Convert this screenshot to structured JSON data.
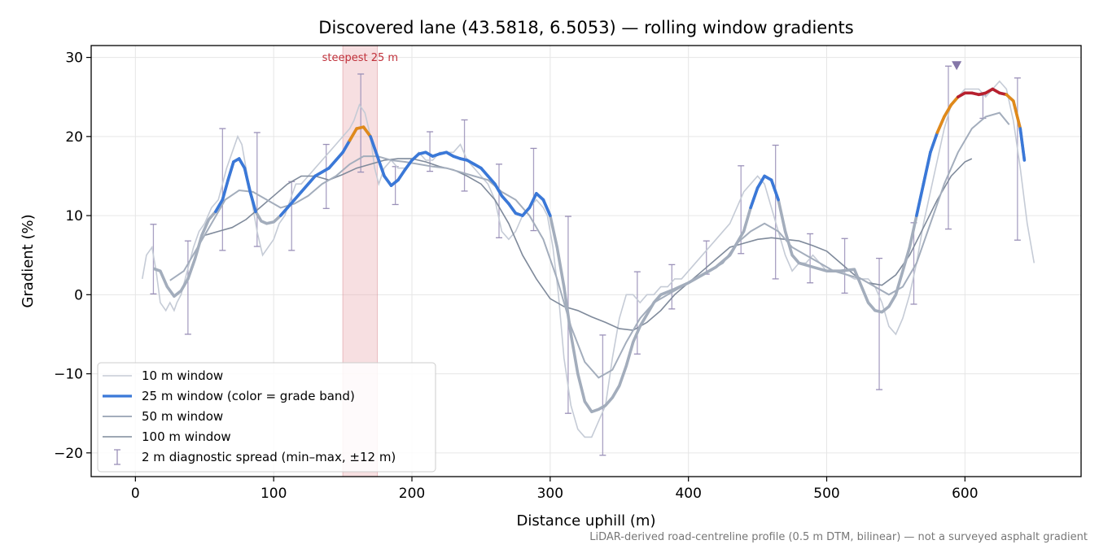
{
  "chart_data": {
    "type": "line",
    "title": "Discovered lane (43.5818, 6.5053) — rolling window gradients",
    "xlabel": "Distance uphill (m)",
    "ylabel": "Gradient (%)",
    "xlim": [
      -32,
      684
    ],
    "ylim": [
      -23,
      31.5
    ],
    "x_ticks": [
      0,
      100,
      200,
      300,
      400,
      500,
      600
    ],
    "y_ticks": [
      -20,
      -10,
      0,
      10,
      20,
      30
    ],
    "grid": true,
    "legend_position": "lower-left",
    "footnote": "LiDAR-derived road-centreline profile (0.5 m DTM, bilinear) — not a surveyed asphalt gradient",
    "highlight_band": {
      "x0": 150,
      "x1": 175,
      "label": "steepest 25 m",
      "color": "#e8a3aa"
    },
    "peak_marker": {
      "x": 594,
      "y": 29,
      "color": "#8476a8"
    },
    "grade_band_colors": {
      "low": "#3a78d8",
      "mid": "#e0891a",
      "high": "#b8202e"
    },
    "series": [
      {
        "name": "10 m window",
        "color": "#c5cbd6",
        "x": [
          5,
          8,
          12,
          15,
          18,
          22,
          25,
          28,
          30,
          33,
          36,
          39,
          42,
          46,
          50,
          55,
          60,
          63,
          66,
          70,
          74,
          77,
          80,
          84,
          88,
          92,
          96,
          100,
          104,
          108,
          112,
          116,
          120,
          125,
          130,
          135,
          140,
          145,
          150,
          155,
          158,
          162,
          166,
          170,
          173,
          176,
          180,
          185,
          190,
          195,
          200,
          205,
          210,
          215,
          220,
          225,
          230,
          235,
          240,
          245,
          250,
          255,
          260,
          265,
          270,
          275,
          280,
          285,
          290,
          295,
          298,
          302,
          306,
          310,
          315,
          320,
          325,
          330,
          335,
          340,
          345,
          350,
          355,
          360,
          365,
          370,
          375,
          380,
          385,
          390,
          395,
          400,
          410,
          420,
          430,
          440,
          445,
          450,
          455,
          460,
          465,
          470,
          475,
          480,
          485,
          490,
          495,
          500,
          510,
          520,
          530,
          535,
          540,
          545,
          550,
          555,
          560,
          565,
          570,
          575,
          580,
          585,
          590,
          595,
          600,
          605,
          610,
          615,
          620,
          625,
          630,
          635,
          640,
          645,
          650
        ],
        "y": [
          2,
          5,
          6,
          3,
          -1,
          -2,
          -1,
          -2,
          -1,
          0,
          2,
          4,
          6,
          8,
          9,
          11,
          12,
          14,
          16,
          18,
          20,
          19,
          16,
          12,
          8,
          5,
          6,
          7,
          9,
          10,
          12,
          14,
          14,
          15,
          16,
          17,
          18,
          19,
          20,
          21,
          22,
          24,
          23,
          20,
          16,
          14,
          16,
          17,
          16,
          16,
          17,
          18,
          17,
          17,
          18,
          18,
          18,
          19,
          17,
          16,
          15,
          14,
          12,
          8,
          7,
          8,
          10,
          11,
          12,
          11,
          10,
          6,
          0,
          -8,
          -14,
          -17,
          -18,
          -18,
          -16,
          -14,
          -8,
          -3,
          0,
          0,
          -1,
          0,
          0,
          1,
          1,
          2,
          2,
          3,
          5,
          7,
          9,
          13,
          14,
          15,
          14,
          11,
          8,
          5,
          3,
          4,
          4,
          5,
          4,
          3,
          3,
          2,
          2,
          1,
          -1,
          -4,
          -5,
          -3,
          0,
          4,
          9,
          13,
          17,
          21,
          24,
          25,
          26,
          26,
          26,
          25,
          26,
          27,
          26,
          22,
          16,
          9,
          4
        ]
      },
      {
        "name": "25 m window (color = grade band)",
        "color": "#3a78d8",
        "x": [
          13,
          18,
          23,
          28,
          33,
          38,
          43,
          48,
          53,
          58,
          63,
          67,
          71,
          75,
          79,
          83,
          87,
          91,
          95,
          100,
          105,
          110,
          115,
          120,
          125,
          130,
          135,
          140,
          145,
          150,
          155,
          160,
          165,
          170,
          175,
          180,
          185,
          190,
          195,
          200,
          205,
          210,
          215,
          220,
          225,
          230,
          235,
          240,
          245,
          250,
          255,
          260,
          265,
          270,
          275,
          280,
          285,
          290,
          295,
          300,
          305,
          310,
          315,
          320,
          325,
          330,
          335,
          340,
          345,
          350,
          355,
          360,
          365,
          370,
          375,
          380,
          390,
          400,
          410,
          420,
          430,
          440,
          445,
          450,
          455,
          460,
          465,
          470,
          475,
          480,
          490,
          500,
          510,
          520,
          530,
          535,
          540,
          545,
          550,
          555,
          560,
          565,
          570,
          575,
          580,
          585,
          590,
          595,
          600,
          605,
          610,
          615,
          620,
          625,
          630,
          635,
          640,
          643
        ],
        "y": [
          3.3,
          3,
          1,
          -0.2,
          0.5,
          2,
          4.5,
          7.5,
          9.5,
          10.5,
          12,
          14.5,
          16.8,
          17.2,
          16,
          13,
          10.5,
          9.3,
          9,
          9.2,
          10,
          11,
          12,
          13,
          14,
          15,
          15.5,
          16,
          17,
          18,
          19.5,
          21,
          21.2,
          20,
          17.5,
          15,
          13.8,
          14.5,
          15.8,
          17,
          17.8,
          18,
          17.5,
          17.8,
          18,
          17.5,
          17.2,
          17,
          16.5,
          16,
          15,
          14,
          12.5,
          11.5,
          10.3,
          10,
          11,
          12.8,
          12,
          10,
          6,
          1,
          -5,
          -10,
          -13.5,
          -14.8,
          -14.5,
          -14,
          -13,
          -11.5,
          -9,
          -6,
          -4,
          -2.5,
          -1,
          0,
          0.7,
          1.5,
          2.5,
          3.5,
          5,
          8,
          11,
          13.5,
          15,
          14.5,
          12,
          8,
          5,
          4,
          3.5,
          3,
          3,
          3.2,
          -1,
          -2,
          -2.2,
          -1.5,
          0,
          3,
          6,
          10,
          14,
          18,
          20.5,
          22.5,
          24,
          25,
          25.5,
          25.5,
          25.3,
          25.5,
          26,
          25.5,
          25.3,
          24.5,
          21,
          17
        ]
      },
      {
        "name": "50 m window",
        "color": "#a3adbc",
        "x": [
          25,
          35,
          45,
          55,
          65,
          75,
          85,
          95,
          105,
          115,
          125,
          135,
          145,
          155,
          165,
          175,
          185,
          195,
          205,
          215,
          225,
          235,
          245,
          255,
          265,
          275,
          285,
          295,
          305,
          315,
          325,
          335,
          345,
          355,
          365,
          375,
          385,
          395,
          405,
          415,
          425,
          435,
          445,
          455,
          465,
          475,
          485,
          495,
          505,
          515,
          525,
          535,
          545,
          555,
          565,
          575,
          585,
          595,
          605,
          615,
          625,
          632
        ],
        "y": [
          1.8,
          3,
          6,
          9,
          12,
          13.2,
          13,
          12,
          11,
          11.5,
          12.5,
          14,
          15,
          16.5,
          17.5,
          17.5,
          17,
          16.8,
          16.5,
          16.2,
          16,
          15.5,
          15,
          14.5,
          13,
          12,
          10,
          7,
          2,
          -4,
          -8.5,
          -10.5,
          -9.5,
          -6,
          -3,
          -1,
          0,
          1,
          2,
          3,
          4,
          6.5,
          8,
          9,
          8,
          6,
          5,
          4,
          3,
          2.5,
          2,
          1,
          0,
          1,
          4,
          9,
          14,
          18,
          21,
          22.5,
          23,
          21.5
        ]
      },
      {
        "name": "100 m window",
        "color": "#7f8a9b",
        "x": [
          50,
          60,
          70,
          80,
          90,
          100,
          110,
          120,
          130,
          140,
          150,
          160,
          170,
          180,
          190,
          200,
          210,
          220,
          230,
          240,
          250,
          260,
          270,
          280,
          290,
          300,
          310,
          320,
          330,
          340,
          350,
          360,
          370,
          380,
          390,
          400,
          410,
          420,
          430,
          440,
          450,
          460,
          470,
          480,
          490,
          500,
          510,
          520,
          530,
          540,
          550,
          560,
          570,
          580,
          590,
          600,
          605
        ],
        "y": [
          7.5,
          8,
          8.5,
          9.5,
          11,
          12.5,
          14,
          15,
          15,
          14.5,
          15.2,
          16,
          16.5,
          17,
          17.2,
          17.2,
          16.8,
          16.2,
          15.8,
          15,
          14,
          12,
          9,
          5,
          2,
          -0.5,
          -1.5,
          -2,
          -2.8,
          -3.5,
          -4.3,
          -4.5,
          -3.5,
          -2,
          0,
          1.5,
          3,
          4.5,
          6,
          6.5,
          7,
          7.2,
          7,
          6.8,
          6.2,
          5.5,
          4,
          2.5,
          1.5,
          1.2,
          2.5,
          5,
          8.5,
          12,
          15,
          16.8,
          17.2
        ]
      }
    ],
    "error_bars": {
      "name": "2 m diagnostic spread (min–max, ±12 m)",
      "color": "#9a90b8",
      "points": [
        {
          "x": 13,
          "low": 0.1,
          "high": 8.9
        },
        {
          "x": 38,
          "low": -5,
          "high": 6.8
        },
        {
          "x": 63,
          "low": 5.6,
          "high": 21
        },
        {
          "x": 88,
          "low": 6.1,
          "high": 20.5
        },
        {
          "x": 113,
          "low": 5.6,
          "high": 14.3
        },
        {
          "x": 138,
          "low": 10.9,
          "high": 19
        },
        {
          "x": 163,
          "low": 15.5,
          "high": 27.9
        },
        {
          "x": 188,
          "low": 11.4,
          "high": 16.2
        },
        {
          "x": 213,
          "low": 15.6,
          "high": 20.6
        },
        {
          "x": 238,
          "low": 13.1,
          "high": 22.1
        },
        {
          "x": 263,
          "low": 7.2,
          "high": 16.5
        },
        {
          "x": 288,
          "low": 8.1,
          "high": 18.5
        },
        {
          "x": 313,
          "low": -15,
          "high": 9.9
        },
        {
          "x": 338,
          "low": -20.3,
          "high": -5.1
        },
        {
          "x": 363,
          "low": -7.5,
          "high": 2.9
        },
        {
          "x": 388,
          "low": -1.8,
          "high": 3.8
        },
        {
          "x": 413,
          "low": 2.6,
          "high": 6.8
        },
        {
          "x": 438,
          "low": 5.2,
          "high": 16.3
        },
        {
          "x": 463,
          "low": 2,
          "high": 18.9
        },
        {
          "x": 488,
          "low": 1.5,
          "high": 7.7
        },
        {
          "x": 513,
          "low": 0.2,
          "high": 7.1
        },
        {
          "x": 538,
          "low": -12,
          "high": 4.6
        },
        {
          "x": 563,
          "low": -1.2,
          "high": 9.1
        },
        {
          "x": 588,
          "low": 8.3,
          "high": 28.9
        },
        {
          "x": 613,
          "low": 22.3,
          "high": 25.2
        },
        {
          "x": 638,
          "low": 6.9,
          "high": 27.4
        }
      ]
    }
  }
}
